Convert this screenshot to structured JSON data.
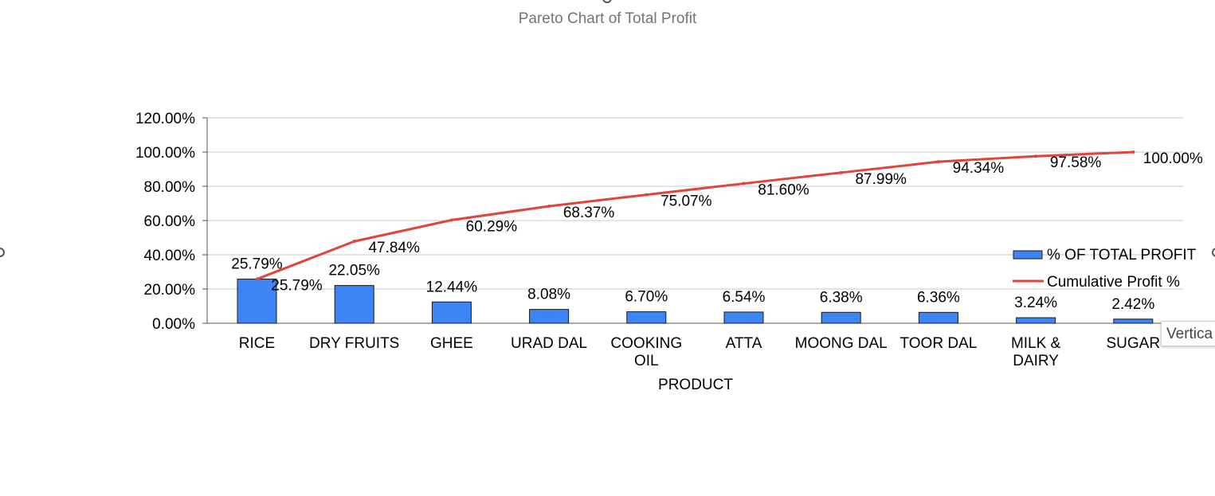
{
  "chart_data": {
    "type": "bar",
    "title": "Pareto Chart of Total Profit",
    "xlabel": "PRODUCT",
    "ylabel": "",
    "ylim": [
      0,
      120
    ],
    "yticks": [
      "0.00%",
      "20.00%",
      "40.00%",
      "60.00%",
      "80.00%",
      "100.00%",
      "120.00%"
    ],
    "ytick_values": [
      0,
      20,
      40,
      60,
      80,
      100,
      120
    ],
    "categories": [
      [
        "RICE"
      ],
      [
        "DRY FRUITS"
      ],
      [
        "GHEE"
      ],
      [
        "URAD DAL"
      ],
      [
        "COOKING",
        "OIL"
      ],
      [
        "ATTA"
      ],
      [
        "MOONG DAL"
      ],
      [
        "TOOR DAL"
      ],
      [
        "MILK &",
        "DAIRY"
      ],
      [
        "SUGAR"
      ]
    ],
    "grid": true,
    "legend_position": "right",
    "series": [
      {
        "name": "% OF TOTAL PROFIT",
        "type": "bar",
        "color": "#3d85f5",
        "values": [
          25.79,
          22.05,
          12.44,
          8.08,
          6.7,
          6.54,
          6.38,
          6.36,
          3.24,
          2.42
        ],
        "labels": [
          "25.79%",
          "22.05%",
          "12.44%",
          "8.08%",
          "6.70%",
          "6.54%",
          "6.38%",
          "6.36%",
          "3.24%",
          "2.42%"
        ]
      },
      {
        "name": "Cumulative Profit %",
        "type": "line",
        "color": "#e0443a",
        "values": [
          25.79,
          47.84,
          60.29,
          68.37,
          75.07,
          81.6,
          87.99,
          94.34,
          97.58,
          100.0
        ],
        "labels": [
          "25.79%",
          "47.84%",
          "60.29%",
          "68.37%",
          "75.07%",
          "81.60%",
          "87.99%",
          "94.34%",
          "97.58%",
          "100.00%"
        ]
      }
    ]
  },
  "tooltip": {
    "text": "Vertica"
  }
}
